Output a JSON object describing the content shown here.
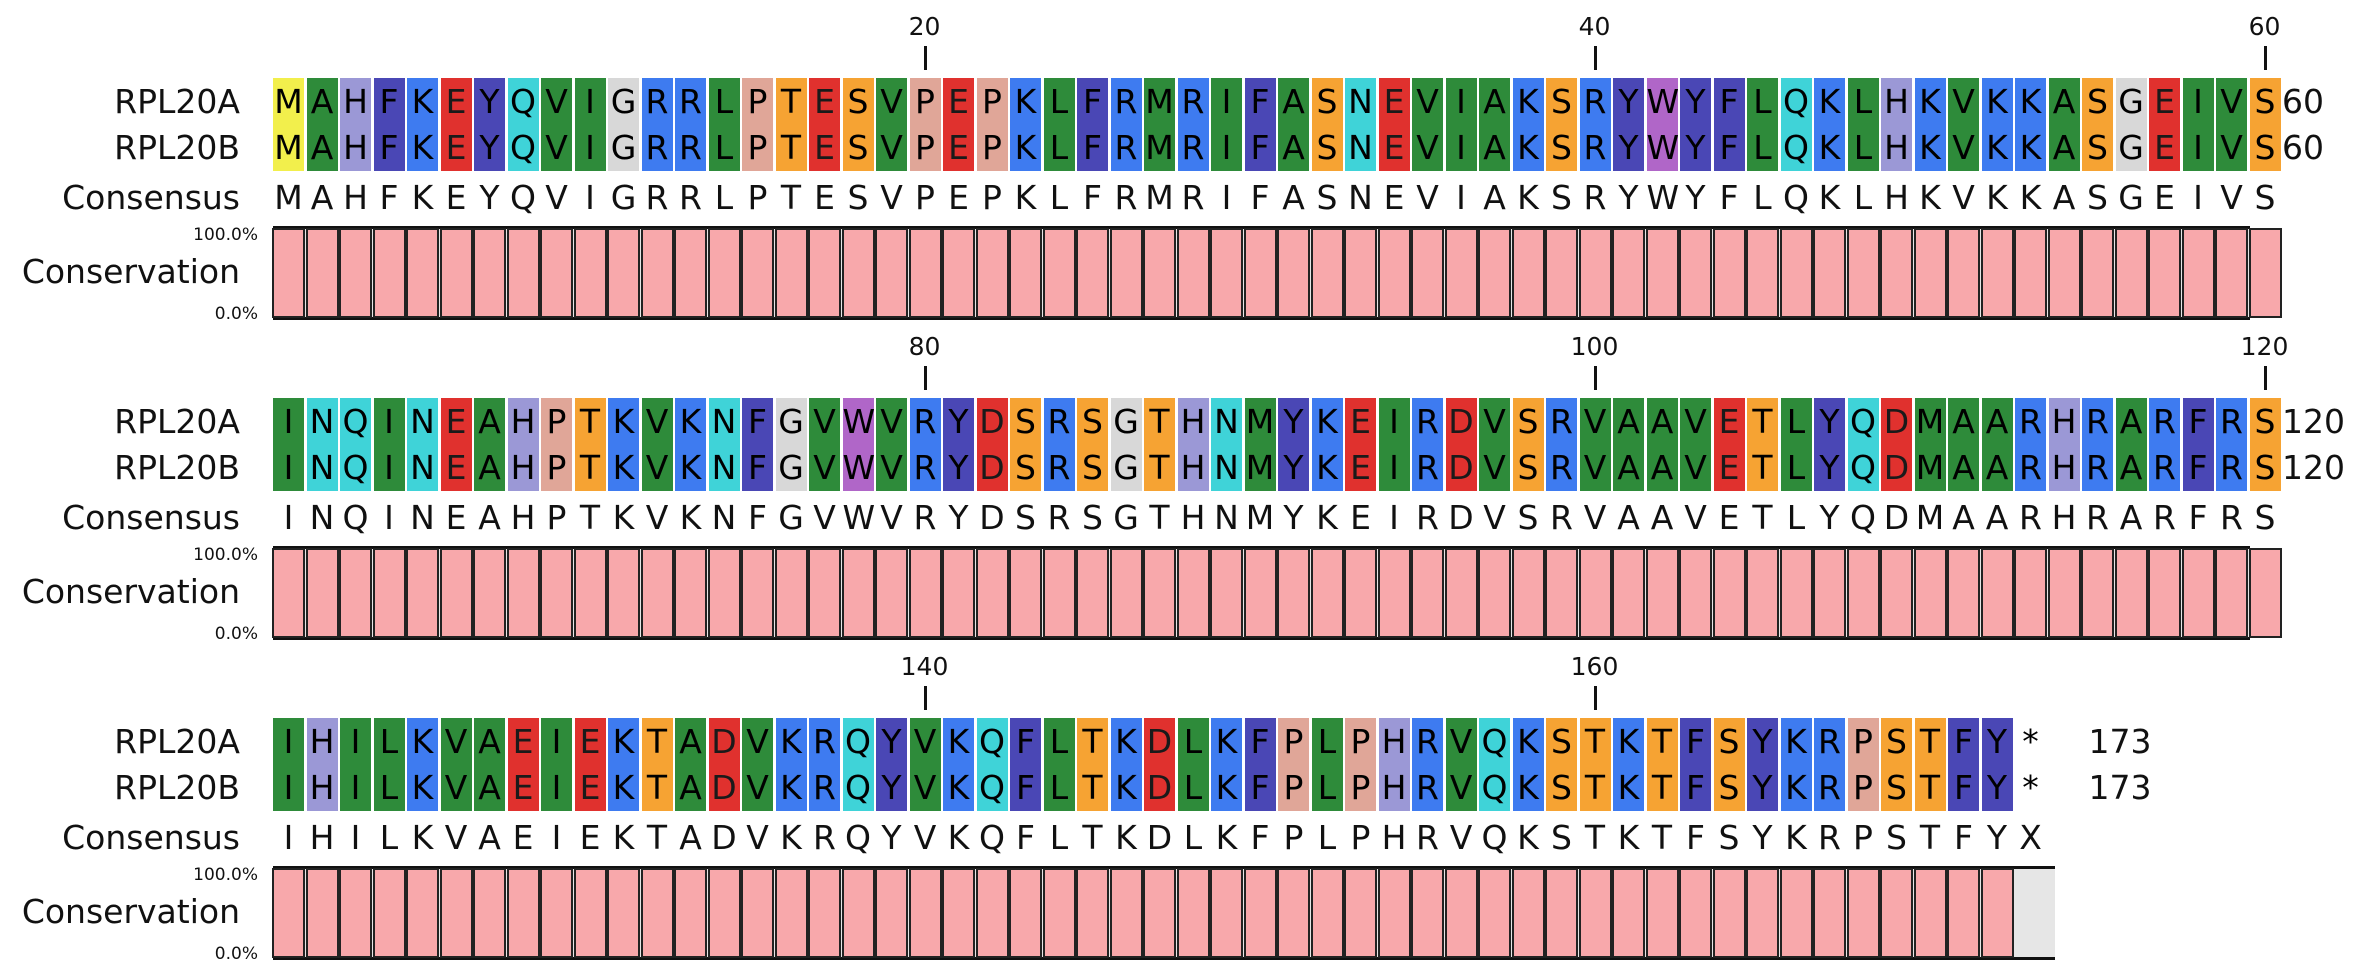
{
  "sequences": [
    {
      "name": "RPL20A"
    },
    {
      "name": "RPL20B"
    }
  ],
  "consensus_label": "Consensus",
  "conservation_label": "Conservation",
  "conservation_axis": {
    "max": "100.0%",
    "min": "0.0%"
  },
  "blocks": [
    {
      "segments": [
        "MAHFKEYQVI",
        "GRRLPTESVP",
        "EPKLFRMRIF",
        "ASNEVIAKSR",
        "YWYFLQKLHK",
        "VKKASGEIVS"
      ],
      "consensus": [
        "MAHFKEYQVI",
        "GRRLPTESVP",
        "EPKLFRMRIF",
        "ASNEVIAKSR",
        "YWYFLQKLHK",
        "VKKASGEIVS"
      ],
      "end": "60",
      "ticks": [
        {
          "label": "20",
          "segment": 1
        },
        {
          "label": "40",
          "segment": 3
        },
        {
          "label": "60",
          "segment": 5
        }
      ]
    },
    {
      "segments": [
        "INQINEAHPT",
        "KVKNFGVWVR",
        "YDSRSGTHNM",
        "YKEIRDVSRV",
        "AAVETLYQDM",
        "AARHRARFRS"
      ],
      "consensus": [
        "INQINEAHPT",
        "KVKNFGVWVR",
        "YDSRSGTHNM",
        "YKEIRDVSRV",
        "AAVETLYQDM",
        "AARHRARFRS"
      ],
      "end": "120",
      "ticks": [
        {
          "label": "80",
          "segment": 1
        },
        {
          "label": "100",
          "segment": 3
        },
        {
          "label": "120",
          "segment": 5
        }
      ]
    },
    {
      "segments": [
        "IHILKVAEIE",
        "KTADVKRQYV",
        "KQFLTKDLKF",
        "PLPHRVQKST",
        "KTFSYKRPST",
        "FY*"
      ],
      "consensus": [
        "IHILKVAEIE",
        "KTADVKRQYV",
        "KQFLTKDLKF",
        "PLPHRVQKST",
        "KTFSYKRPST",
        "FYX"
      ],
      "end": "173",
      "ticks": [
        {
          "label": "140",
          "segment": 1
        },
        {
          "label": "160",
          "segment": 3
        }
      ]
    }
  ],
  "conservation_fraction": 1.0,
  "colors": {
    "hydrophobic_A_I_L_V_M": "#2e8b3a",
    "acidic_E_D": "#e0312e",
    "basic_K_R": "#3e7bf0",
    "aromatic_F_Y": "#4a47b5",
    "polar_S_T": "#f6a333",
    "polar_N_Q": "#3fd3d8",
    "H": "#9b98d6",
    "P": "#e0a698",
    "G": "#d8d8d8",
    "W": "#b066c8",
    "C_first_M": "#f2ef4c",
    "conservation_bar": "#f8a8ab",
    "gap_bg": "#e6e6e6"
  }
}
